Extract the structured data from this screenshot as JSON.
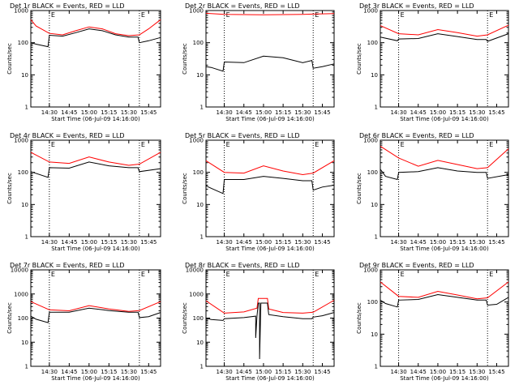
{
  "colors": {
    "events": "#000000",
    "lld": "#ff0000",
    "axes": "#000000",
    "background": "#ffffff"
  },
  "chart_data": [
    {
      "type": "line",
      "title": "Det 1r BLACK = Events, RED = LLD",
      "xlabel": "Start Time (06-Jul-09 14:16:00)",
      "ylabel": "Counts/sec",
      "y_scale": "log",
      "ylim": [
        1,
        1000
      ],
      "y_ticks": [
        "1",
        "10",
        "100",
        "1000"
      ],
      "x_ticks": [
        "14:30",
        "14:45",
        "15:00",
        "15:15",
        "15:30",
        "15:45"
      ],
      "xlim": [
        "14:16",
        "15:54"
      ],
      "x_tick_minutes": [
        14,
        29,
        44,
        59,
        74,
        89
      ],
      "markers": [
        "14:30",
        "15:38"
      ],
      "marker_label": "E",
      "series": [
        {
          "name": "LLD",
          "color": "#ff0000",
          "x": [
            "14:16",
            "14:20",
            "14:30",
            "14:40",
            "14:50",
            "15:00",
            "15:10",
            "15:20",
            "15:30",
            "15:38",
            "15:45",
            "15:54"
          ],
          "y": [
            520,
            330,
            195,
            175,
            235,
            310,
            270,
            190,
            165,
            175,
            270,
            520
          ]
        },
        {
          "name": "Events",
          "color": "#000000",
          "x": [
            "14:16",
            "14:20",
            "14:29",
            "14:30",
            "14:40",
            "14:50",
            "15:00",
            "15:10",
            "15:20",
            "15:30",
            "15:37",
            "15:38",
            "15:45",
            "15:54"
          ],
          "y": [
            100,
            90,
            75,
            170,
            160,
            205,
            270,
            235,
            175,
            150,
            150,
            100,
            115,
            145
          ]
        }
      ]
    },
    {
      "type": "line",
      "title": "Det 2r BLACK = Events, RED = LLD",
      "xlabel": "Start Time (06-Jul-09 14:16:00)",
      "ylabel": "Counts/sec",
      "y_scale": "log",
      "ylim": [
        1,
        1000
      ],
      "y_ticks": [
        "1",
        "10",
        "100",
        "1000"
      ],
      "x_ticks": [
        "14:30",
        "14:45",
        "15:00",
        "15:15",
        "15:30",
        "15:45"
      ],
      "xlim": [
        "14:16",
        "15:54"
      ],
      "x_tick_minutes": [
        14,
        29,
        44,
        59,
        74,
        89
      ],
      "markers": [
        "14:30",
        "15:38"
      ],
      "marker_label": "E",
      "series": [
        {
          "name": "LLD",
          "color": "#ff0000",
          "x": [
            "14:16",
            "14:30",
            "15:00",
            "15:30",
            "15:54"
          ],
          "y": [
            820,
            760,
            740,
            760,
            800
          ]
        },
        {
          "name": "Events",
          "color": "#000000",
          "x": [
            "14:16",
            "14:20",
            "14:29",
            "14:30",
            "14:45",
            "15:00",
            "15:15",
            "15:30",
            "15:37",
            "15:38",
            "15:45",
            "15:54"
          ],
          "y": [
            18,
            17,
            13,
            25,
            24,
            38,
            34,
            24,
            28,
            16,
            18,
            22
          ]
        }
      ]
    },
    {
      "type": "line",
      "title": "Det 3r BLACK = Events, RED = LLD",
      "xlabel": "Start Time (06-Jul-09 14:16:00)",
      "ylabel": "Counts/sec",
      "y_scale": "log",
      "ylim": [
        1,
        1000
      ],
      "y_ticks": [
        "1",
        "10",
        "100",
        "1000"
      ],
      "x_ticks": [
        "14:30",
        "14:45",
        "15:00",
        "15:15",
        "15:30",
        "15:45"
      ],
      "xlim": [
        "14:16",
        "15:54"
      ],
      "x_tick_minutes": [
        14,
        29,
        44,
        59,
        74,
        89
      ],
      "markers": [
        "14:30",
        "15:38"
      ],
      "marker_label": "E",
      "series": [
        {
          "name": "LLD",
          "color": "#ff0000",
          "x": [
            "14:16",
            "14:30",
            "14:45",
            "15:00",
            "15:15",
            "15:30",
            "15:38",
            "15:54"
          ],
          "y": [
            340,
            190,
            175,
            255,
            205,
            160,
            175,
            350
          ]
        },
        {
          "name": "Events",
          "color": "#000000",
          "x": [
            "14:16",
            "14:29",
            "14:30",
            "14:45",
            "15:00",
            "15:15",
            "15:30",
            "15:37",
            "15:38",
            "15:54"
          ],
          "y": [
            150,
            115,
            130,
            135,
            190,
            155,
            125,
            125,
            110,
            190
          ]
        }
      ]
    },
    {
      "type": "line",
      "title": "Det 4r BLACK = Events, RED = LLD",
      "xlabel": "Start Time (06-Jul-09 14:16:00)",
      "ylabel": "Counts/sec",
      "y_scale": "log",
      "ylim": [
        1,
        1000
      ],
      "y_ticks": [
        "1",
        "10",
        "100",
        "1000"
      ],
      "x_ticks": [
        "14:30",
        "14:45",
        "15:00",
        "15:15",
        "15:30",
        "15:45"
      ],
      "xlim": [
        "14:16",
        "15:54"
      ],
      "x_tick_minutes": [
        14,
        29,
        44,
        59,
        74,
        89
      ],
      "markers": [
        "14:30",
        "15:38"
      ],
      "marker_label": "E",
      "series": [
        {
          "name": "LLD",
          "color": "#ff0000",
          "x": [
            "14:16",
            "14:30",
            "14:45",
            "15:00",
            "15:15",
            "15:30",
            "15:38",
            "15:54"
          ],
          "y": [
            420,
            210,
            190,
            300,
            210,
            165,
            180,
            420
          ]
        },
        {
          "name": "Events",
          "color": "#000000",
          "x": [
            "14:16",
            "14:29",
            "14:30",
            "14:45",
            "15:00",
            "15:15",
            "15:30",
            "15:37",
            "15:38",
            "15:54"
          ],
          "y": [
            105,
            70,
            140,
            135,
            210,
            160,
            140,
            140,
            105,
            130
          ]
        }
      ]
    },
    {
      "type": "line",
      "title": "Det 5r BLACK = Events, RED = LLD",
      "xlabel": "Start Time (06-Jul-09 14:16:00)",
      "ylabel": "Counts/sec",
      "y_scale": "log",
      "ylim": [
        1,
        1000
      ],
      "y_ticks": [
        "1",
        "10",
        "100",
        "1000"
      ],
      "x_ticks": [
        "14:30",
        "14:45",
        "15:00",
        "15:15",
        "15:30",
        "15:45"
      ],
      "xlim": [
        "14:16",
        "15:54"
      ],
      "x_tick_minutes": [
        14,
        29,
        44,
        59,
        74,
        89
      ],
      "markers": [
        "14:30",
        "15:38"
      ],
      "marker_label": "E",
      "series": [
        {
          "name": "LLD",
          "color": "#ff0000",
          "x": [
            "14:16",
            "14:30",
            "14:45",
            "15:00",
            "15:15",
            "15:30",
            "15:38",
            "15:54"
          ],
          "y": [
            230,
            100,
            95,
            160,
            110,
            85,
            95,
            230
          ]
        },
        {
          "name": "Events",
          "color": "#000000",
          "x": [
            "14:16",
            "14:20",
            "14:29",
            "14:30",
            "14:45",
            "15:00",
            "15:15",
            "15:30",
            "15:37",
            "15:38",
            "15:45",
            "15:54"
          ],
          "y": [
            38,
            32,
            22,
            60,
            60,
            75,
            65,
            55,
            55,
            28,
            35,
            40
          ]
        }
      ]
    },
    {
      "type": "line",
      "title": "Det 6r BLACK = Events, RED = LLD",
      "xlabel": "Start Time (06-Jul-09 14:16:00)",
      "ylabel": "Counts/sec",
      "y_scale": "log",
      "ylim": [
        1,
        1000
      ],
      "y_ticks": [
        "1",
        "10",
        "100",
        "1000"
      ],
      "x_ticks": [
        "14:30",
        "14:45",
        "15:00",
        "15:15",
        "15:30",
        "15:45"
      ],
      "xlim": [
        "14:16",
        "15:54"
      ],
      "x_tick_minutes": [
        14,
        29,
        44,
        59,
        74,
        89
      ],
      "markers": [
        "14:30",
        "15:38"
      ],
      "marker_label": "E",
      "series": [
        {
          "name": "LLD",
          "color": "#ff0000",
          "x": [
            "14:16",
            "14:30",
            "14:45",
            "15:00",
            "15:15",
            "15:30",
            "15:38",
            "15:54"
          ],
          "y": [
            650,
            280,
            155,
            235,
            175,
            130,
            140,
            540
          ]
        },
        {
          "name": "Events",
          "color": "#000000",
          "x": [
            "14:16",
            "14:20",
            "14:29",
            "14:30",
            "14:45",
            "15:00",
            "15:15",
            "15:30",
            "15:37",
            "15:38",
            "15:54"
          ],
          "y": [
            125,
            75,
            60,
            100,
            105,
            140,
            110,
            100,
            100,
            65,
            85
          ]
        }
      ]
    },
    {
      "type": "line",
      "title": "Det 7r BLACK = Events, RED = LLD",
      "xlabel": "Start Time (06-Jul-09 14:16:00)",
      "ylabel": "Counts/sec",
      "y_scale": "log",
      "ylim": [
        1,
        10000
      ],
      "y_ticks": [
        "1",
        "10",
        "100",
        "1000",
        "10000"
      ],
      "x_ticks": [
        "14:30",
        "14:45",
        "15:00",
        "15:15",
        "15:30",
        "15:45"
      ],
      "xlim": [
        "14:16",
        "15:54"
      ],
      "x_tick_minutes": [
        14,
        29,
        44,
        59,
        74,
        89
      ],
      "markers": [
        "14:30",
        "15:38"
      ],
      "marker_label": "E",
      "series": [
        {
          "name": "LLD",
          "color": "#ff0000",
          "x": [
            "14:16",
            "14:30",
            "14:45",
            "15:00",
            "15:15",
            "15:30",
            "15:38",
            "15:54"
          ],
          "y": [
            480,
            220,
            200,
            330,
            240,
            190,
            205,
            480
          ]
        },
        {
          "name": "Events",
          "color": "#000000",
          "x": [
            "14:16",
            "14:20",
            "14:29",
            "14:30",
            "14:45",
            "15:00",
            "15:15",
            "15:30",
            "15:37",
            "15:38",
            "15:45",
            "15:54"
          ],
          "y": [
            120,
            90,
            65,
            175,
            175,
            260,
            205,
            175,
            175,
            105,
            115,
            170
          ]
        }
      ]
    },
    {
      "type": "line",
      "title": "Det 8r BLACK = Events, RED = LLD",
      "xlabel": "Start Time (06-Jul-09 14:16:00)",
      "ylabel": "Counts/sec",
      "y_scale": "log",
      "ylim": [
        1,
        10000
      ],
      "y_ticks": [
        "1",
        "10",
        "100",
        "1000",
        "10000"
      ],
      "x_ticks": [
        "14:30",
        "14:45",
        "15:00",
        "15:15",
        "15:30",
        "15:45"
      ],
      "xlim": [
        "14:16",
        "15:54"
      ],
      "x_tick_minutes": [
        14,
        29,
        44,
        59,
        74,
        89
      ],
      "markers": [
        "14:30",
        "15:38"
      ],
      "marker_label": "E",
      "series": [
        {
          "name": "LLD",
          "color": "#ff0000",
          "x": [
            "14:16",
            "14:30",
            "14:45",
            "14:55",
            "14:56",
            "15:03",
            "15:04",
            "15:15",
            "15:30",
            "15:38",
            "15:54"
          ],
          "y": [
            520,
            160,
            180,
            260,
            650,
            650,
            240,
            170,
            160,
            175,
            550
          ]
        },
        {
          "name": "Events",
          "color": "#000000",
          "x": [
            "14:16",
            "14:20",
            "14:29",
            "14:30",
            "14:45",
            "14:54",
            "14:54",
            "14:55",
            "14:56",
            "14:57",
            "14:57",
            "14:58",
            "15:03",
            "15:04",
            "15:15",
            "15:30",
            "15:37",
            "15:38",
            "15:45",
            "15:54"
          ],
          "y": [
            100,
            88,
            80,
            95,
            105,
            120,
            15,
            120,
            420,
            420,
            2,
            420,
            420,
            140,
            115,
            95,
            95,
            110,
            125,
            170
          ]
        }
      ]
    },
    {
      "type": "line",
      "title": "Det 9r BLACK = Events, RED = LLD",
      "xlabel": "Start Time (06-Jul-09 14:16:00)",
      "ylabel": "Counts/sec",
      "y_scale": "log",
      "ylim": [
        1,
        1000
      ],
      "y_ticks": [
        "1",
        "10",
        "100",
        "1000"
      ],
      "x_ticks": [
        "14:30",
        "14:45",
        "15:00",
        "15:15",
        "15:30",
        "15:45"
      ],
      "xlim": [
        "14:16",
        "15:54"
      ],
      "x_tick_minutes": [
        14,
        29,
        44,
        59,
        74,
        89
      ],
      "markers": [
        "14:30",
        "15:38"
      ],
      "marker_label": "E",
      "series": [
        {
          "name": "LLD",
          "color": "#ff0000",
          "x": [
            "14:16",
            "14:30",
            "14:45",
            "15:00",
            "15:15",
            "15:30",
            "15:38",
            "15:54"
          ],
          "y": [
            420,
            150,
            140,
            215,
            165,
            125,
            135,
            420
          ]
        },
        {
          "name": "Events",
          "color": "#000000",
          "x": [
            "14:16",
            "14:20",
            "14:29",
            "14:30",
            "14:45",
            "15:00",
            "15:15",
            "15:30",
            "15:37",
            "15:38",
            "15:45",
            "15:54"
          ],
          "y": [
            115,
            90,
            70,
            115,
            120,
            170,
            140,
            115,
            115,
            80,
            85,
            140
          ]
        }
      ]
    }
  ]
}
